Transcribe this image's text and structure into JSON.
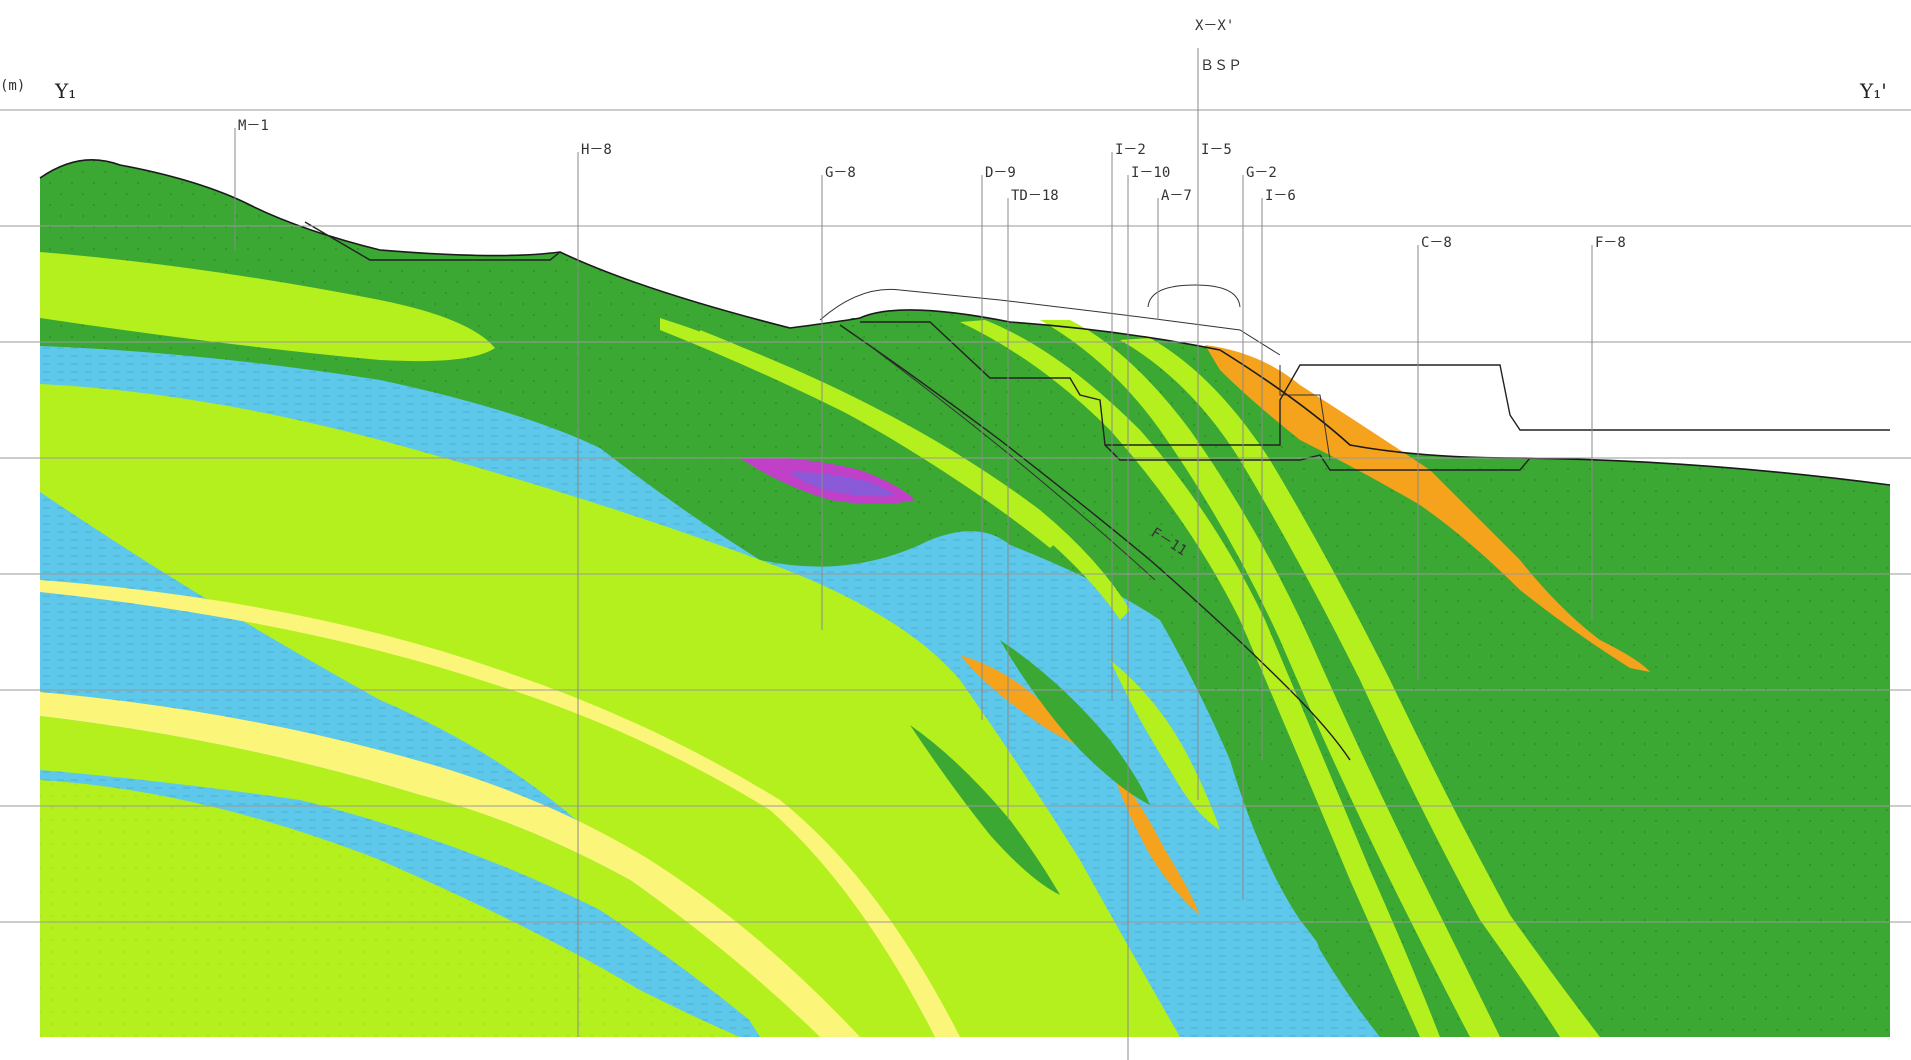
{
  "section": {
    "left_label": "Y₁",
    "right_label": "Y₁'",
    "axis_unit": "(m)",
    "cross_section_ref": "X－X'",
    "cross_section_sub": "ＢＳＰ"
  },
  "boreholes": [
    {
      "id": "bh-m1",
      "label": "M－1"
    },
    {
      "id": "bh-h8",
      "label": "H－8"
    },
    {
      "id": "bh-g8",
      "label": "G－8"
    },
    {
      "id": "bh-d9",
      "label": "D－9"
    },
    {
      "id": "bh-td18",
      "label": "TD－18"
    },
    {
      "id": "bh-i2",
      "label": "I－2"
    },
    {
      "id": "bh-i10",
      "label": "I－10"
    },
    {
      "id": "bh-a7",
      "label": "A－7"
    },
    {
      "id": "bh-i5",
      "label": "I－5"
    },
    {
      "id": "bh-g2",
      "label": "G－2"
    },
    {
      "id": "bh-i6",
      "label": "I－6"
    },
    {
      "id": "bh-c8",
      "label": "C－8"
    },
    {
      "id": "bh-f8",
      "label": "F－8"
    }
  ],
  "annotations": {
    "fault_label": "F－11"
  },
  "colors": {
    "dark_green": "#3aa832",
    "light_green": "#b4f01e",
    "blue": "#5ec8ea",
    "yellow": "#fbf57a",
    "orange": "#f5a21c",
    "magenta": "#c040c8",
    "violet": "#8a5ad8"
  }
}
